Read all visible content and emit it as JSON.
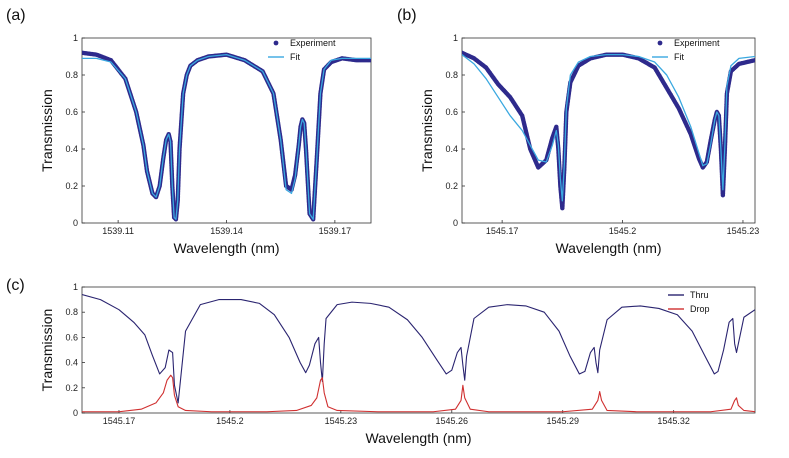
{
  "panels": {
    "a": {
      "label": "(a)"
    },
    "b": {
      "label": "(b)"
    },
    "c": {
      "label": "(c)"
    }
  },
  "chart_data": [
    {
      "id": "a",
      "type": "scatter",
      "xlabel": "Wavelength (nm)",
      "ylabel": "Transmission",
      "xlim": [
        1539.1,
        1539.18
      ],
      "ylim": [
        0,
        1
      ],
      "xticks": [
        "1539.11",
        "1539.14",
        "1539.17"
      ],
      "xtick_values": [
        1539.11,
        1539.14,
        1539.17
      ],
      "yticks": [
        "0",
        "0.2",
        "0.4",
        "0.6",
        "0.8",
        "1"
      ],
      "ytick_values": [
        0,
        0.2,
        0.4,
        0.6,
        0.8,
        1
      ],
      "grid": false,
      "legend": {
        "position": "top-right",
        "entries": [
          "Experiment",
          "Fit"
        ]
      },
      "series": [
        {
          "name": "Experiment",
          "kind": "points",
          "color": "#2e2a8c",
          "x": [
            1539.1,
            1539.104,
            1539.108,
            1539.112,
            1539.115,
            1539.117,
            1539.118,
            1539.1195,
            1539.1205,
            1539.1215,
            1539.1225,
            1539.1233,
            1539.124,
            1539.1245,
            1539.125,
            1539.1255,
            1539.126,
            1539.1265,
            1539.127,
            1539.128,
            1539.129,
            1539.13,
            1539.132,
            1539.135,
            1539.14,
            1539.145,
            1539.15,
            1539.153,
            1539.155,
            1539.1565,
            1539.158,
            1539.159,
            1539.16,
            1539.1605,
            1539.161,
            1539.1615,
            1539.162,
            1539.163,
            1539.164,
            1539.165,
            1539.166,
            1539.167,
            1539.169,
            1539.172,
            1539.176,
            1539.18
          ],
          "y": [
            0.92,
            0.91,
            0.88,
            0.78,
            0.6,
            0.42,
            0.28,
            0.16,
            0.14,
            0.2,
            0.35,
            0.45,
            0.48,
            0.44,
            0.2,
            0.03,
            0.02,
            0.12,
            0.4,
            0.7,
            0.8,
            0.85,
            0.88,
            0.9,
            0.91,
            0.88,
            0.82,
            0.7,
            0.45,
            0.2,
            0.18,
            0.26,
            0.42,
            0.52,
            0.56,
            0.54,
            0.4,
            0.05,
            0.02,
            0.35,
            0.7,
            0.83,
            0.87,
            0.89,
            0.88,
            0.88
          ]
        },
        {
          "name": "Fit",
          "kind": "line",
          "color": "#3aa8e0",
          "x": [
            1539.1,
            1539.104,
            1539.108,
            1539.112,
            1539.115,
            1539.117,
            1539.118,
            1539.1195,
            1539.1205,
            1539.1215,
            1539.1225,
            1539.1233,
            1539.124,
            1539.1245,
            1539.125,
            1539.1255,
            1539.126,
            1539.1265,
            1539.127,
            1539.128,
            1539.129,
            1539.13,
            1539.132,
            1539.135,
            1539.14,
            1539.145,
            1539.15,
            1539.153,
            1539.155,
            1539.1565,
            1539.158,
            1539.159,
            1539.16,
            1539.1605,
            1539.161,
            1539.1615,
            1539.162,
            1539.163,
            1539.164,
            1539.165,
            1539.166,
            1539.167,
            1539.169,
            1539.172,
            1539.176,
            1539.18
          ],
          "y": [
            0.89,
            0.89,
            0.87,
            0.78,
            0.6,
            0.42,
            0.28,
            0.16,
            0.14,
            0.2,
            0.35,
            0.45,
            0.48,
            0.44,
            0.2,
            0.03,
            0.02,
            0.12,
            0.4,
            0.7,
            0.8,
            0.85,
            0.88,
            0.9,
            0.91,
            0.88,
            0.82,
            0.7,
            0.45,
            0.18,
            0.16,
            0.24,
            0.42,
            0.52,
            0.56,
            0.54,
            0.4,
            0.05,
            0.02,
            0.35,
            0.7,
            0.83,
            0.88,
            0.89,
            0.89,
            0.89
          ]
        }
      ]
    },
    {
      "id": "b",
      "type": "scatter",
      "xlabel": "Wavelength (nm)",
      "ylabel": "Transmission",
      "xlim": [
        1545.16,
        1545.233
      ],
      "ylim": [
        0,
        1
      ],
      "xticks": [
        "1545.17",
        "1545.2",
        "1545.23"
      ],
      "xtick_values": [
        1545.17,
        1545.2,
        1545.23
      ],
      "yticks": [
        "0",
        "0.2",
        "0.4",
        "0.6",
        "0.8",
        "1"
      ],
      "ytick_values": [
        0,
        0.2,
        0.4,
        0.6,
        0.8,
        1
      ],
      "grid": false,
      "legend": {
        "position": "top-right",
        "entries": [
          "Experiment",
          "Fit"
        ]
      },
      "series": [
        {
          "name": "Experiment",
          "kind": "points",
          "color": "#2e2a8c",
          "x": [
            1545.16,
            1545.163,
            1545.166,
            1545.169,
            1545.172,
            1545.175,
            1545.177,
            1545.179,
            1545.181,
            1545.1825,
            1545.1835,
            1545.184,
            1545.1845,
            1545.185,
            1545.1855,
            1545.186,
            1545.187,
            1545.189,
            1545.192,
            1545.196,
            1545.2,
            1545.204,
            1545.208,
            1545.211,
            1545.214,
            1545.217,
            1545.219,
            1545.22,
            1545.221,
            1545.222,
            1545.223,
            1545.2235,
            1545.224,
            1545.2245,
            1545.225,
            1545.2255,
            1545.226,
            1545.227,
            1545.229,
            1545.233
          ],
          "y": [
            0.92,
            0.89,
            0.84,
            0.75,
            0.68,
            0.58,
            0.4,
            0.3,
            0.34,
            0.46,
            0.52,
            0.4,
            0.2,
            0.08,
            0.3,
            0.6,
            0.76,
            0.85,
            0.89,
            0.91,
            0.91,
            0.89,
            0.84,
            0.73,
            0.62,
            0.48,
            0.35,
            0.3,
            0.33,
            0.45,
            0.56,
            0.6,
            0.58,
            0.4,
            0.15,
            0.4,
            0.7,
            0.82,
            0.86,
            0.88
          ]
        },
        {
          "name": "Fit",
          "kind": "line",
          "color": "#3aa8e0",
          "x": [
            1545.16,
            1545.163,
            1545.166,
            1545.169,
            1545.172,
            1545.175,
            1545.177,
            1545.179,
            1545.181,
            1545.1825,
            1545.1835,
            1545.184,
            1545.1845,
            1545.185,
            1545.1855,
            1545.186,
            1545.187,
            1545.189,
            1545.192,
            1545.196,
            1545.2,
            1545.204,
            1545.208,
            1545.211,
            1545.214,
            1545.217,
            1545.219,
            1545.22,
            1545.221,
            1545.222,
            1545.223,
            1545.2235,
            1545.224,
            1545.2245,
            1545.225,
            1545.2255,
            1545.226,
            1545.227,
            1545.229,
            1545.233
          ],
          "y": [
            0.91,
            0.86,
            0.78,
            0.68,
            0.58,
            0.5,
            0.42,
            0.34,
            0.33,
            0.42,
            0.5,
            0.42,
            0.24,
            0.12,
            0.32,
            0.62,
            0.8,
            0.87,
            0.9,
            0.91,
            0.91,
            0.9,
            0.87,
            0.8,
            0.68,
            0.52,
            0.38,
            0.31,
            0.32,
            0.43,
            0.56,
            0.6,
            0.58,
            0.4,
            0.18,
            0.42,
            0.74,
            0.85,
            0.89,
            0.9
          ]
        }
      ]
    },
    {
      "id": "c",
      "type": "line",
      "xlabel": "Wavelength (nm)",
      "ylabel": "Transmission",
      "xlim": [
        1545.16,
        1545.342
      ],
      "ylim": [
        0,
        1
      ],
      "xticks": [
        "1545.17",
        "1545.2",
        "1545.23",
        "1545.26",
        "1545.29",
        "1545.32"
      ],
      "xtick_values": [
        1545.17,
        1545.2,
        1545.23,
        1545.26,
        1545.29,
        1545.32
      ],
      "yticks": [
        "0",
        "0.2",
        "0.4",
        "0.6",
        "0.8",
        "1"
      ],
      "ytick_values": [
        0,
        0.2,
        0.4,
        0.6,
        0.8,
        1
      ],
      "grid": false,
      "legend": {
        "position": "top-right",
        "entries": [
          "Thru",
          "Drop"
        ]
      },
      "series": [
        {
          "name": "Thru",
          "kind": "line",
          "color": "#2a2470",
          "x": [
            1545.16,
            1545.165,
            1545.17,
            1545.174,
            1545.177,
            1545.179,
            1545.181,
            1545.1825,
            1545.1835,
            1545.1845,
            1545.185,
            1545.186,
            1545.188,
            1545.192,
            1545.197,
            1545.203,
            1545.208,
            1545.212,
            1545.216,
            1545.219,
            1545.2205,
            1545.2215,
            1545.223,
            1545.224,
            1545.2245,
            1545.225,
            1545.2255,
            1545.226,
            1545.229,
            1545.233,
            1545.238,
            1545.243,
            1545.248,
            1545.252,
            1545.256,
            1545.2585,
            1545.26,
            1545.2615,
            1545.2625,
            1545.263,
            1545.2635,
            1545.264,
            1545.266,
            1545.27,
            1545.275,
            1545.28,
            1545.285,
            1545.289,
            1545.292,
            1545.2945,
            1545.296,
            1545.2975,
            1545.2985,
            1545.299,
            1545.2995,
            1545.3,
            1545.302,
            1545.306,
            1545.311,
            1545.316,
            1545.321,
            1545.325,
            1545.3285,
            1545.331,
            1545.332,
            1545.3335,
            1545.335,
            1545.336,
            1545.3365,
            1545.337,
            1545.339,
            1545.342
          ],
          "y": [
            0.94,
            0.9,
            0.82,
            0.72,
            0.62,
            0.46,
            0.31,
            0.36,
            0.5,
            0.48,
            0.22,
            0.08,
            0.65,
            0.86,
            0.9,
            0.9,
            0.87,
            0.78,
            0.6,
            0.4,
            0.32,
            0.38,
            0.55,
            0.6,
            0.4,
            0.25,
            0.55,
            0.75,
            0.86,
            0.88,
            0.87,
            0.84,
            0.74,
            0.6,
            0.42,
            0.31,
            0.34,
            0.48,
            0.52,
            0.38,
            0.26,
            0.45,
            0.75,
            0.84,
            0.86,
            0.85,
            0.8,
            0.65,
            0.45,
            0.31,
            0.33,
            0.48,
            0.52,
            0.4,
            0.32,
            0.5,
            0.74,
            0.84,
            0.85,
            0.83,
            0.78,
            0.65,
            0.45,
            0.31,
            0.33,
            0.5,
            0.72,
            0.75,
            0.55,
            0.48,
            0.76,
            0.82
          ]
        },
        {
          "name": "Drop",
          "kind": "line",
          "color": "#d03030",
          "x": [
            1545.16,
            1545.17,
            1545.176,
            1545.18,
            1545.182,
            1545.183,
            1545.184,
            1545.1845,
            1545.185,
            1545.186,
            1545.188,
            1545.195,
            1545.21,
            1545.218,
            1545.222,
            1545.2235,
            1545.2245,
            1545.225,
            1545.2255,
            1545.2265,
            1545.229,
            1545.24,
            1545.255,
            1545.261,
            1545.2625,
            1545.263,
            1545.2635,
            1545.265,
            1545.27,
            1545.29,
            1545.298,
            1545.2995,
            1545.3,
            1545.3005,
            1545.302,
            1545.31,
            1545.33,
            1545.3355,
            1545.3365,
            1545.337,
            1545.3375,
            1545.339,
            1545.342
          ],
          "y": [
            0.01,
            0.01,
            0.03,
            0.08,
            0.16,
            0.26,
            0.3,
            0.28,
            0.14,
            0.05,
            0.02,
            0.01,
            0.01,
            0.02,
            0.06,
            0.12,
            0.26,
            0.28,
            0.16,
            0.05,
            0.02,
            0.01,
            0.01,
            0.03,
            0.1,
            0.22,
            0.12,
            0.03,
            0.01,
            0.01,
            0.03,
            0.1,
            0.17,
            0.1,
            0.02,
            0.01,
            0.01,
            0.03,
            0.1,
            0.12,
            0.06,
            0.02,
            0.01
          ]
        }
      ]
    }
  ]
}
